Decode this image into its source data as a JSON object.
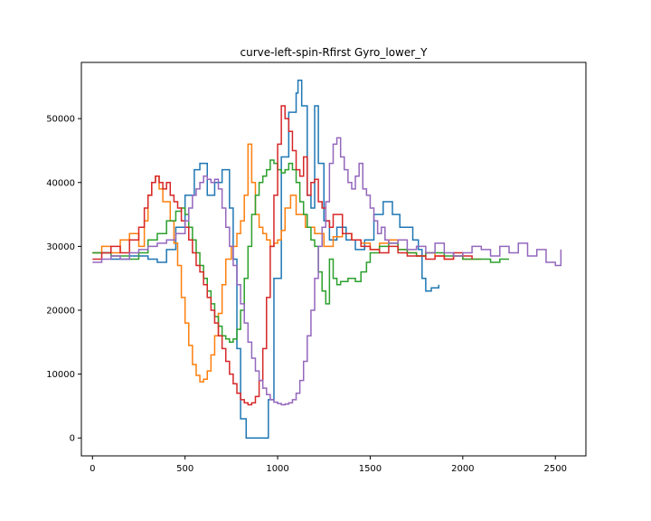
{
  "chart_data": {
    "type": "line",
    "title": "curve-left-spin-Rfirst Gyro_lower_Y",
    "xlabel": "",
    "ylabel": "",
    "xlim": [
      -60,
      2665
    ],
    "ylim": [
      -2800,
      58800
    ],
    "xticks": [
      0,
      500,
      1000,
      1500,
      2000,
      2500
    ],
    "yticks": [
      0,
      10000,
      20000,
      30000,
      40000,
      50000
    ],
    "xtick_labels": [
      "0",
      "500",
      "1000",
      "1500",
      "2000",
      "2500"
    ],
    "ytick_labels": [
      "0",
      "10000",
      "20000",
      "30000",
      "40000",
      "50000"
    ],
    "grid": false,
    "legend": "none",
    "series": [
      {
        "color": "#1f77b4",
        "x": [
          0,
          100,
          200,
          300,
          350,
          400,
          450,
          500,
          550,
          580,
          620,
          660,
          700,
          740,
          760,
          780,
          800,
          830,
          880,
          920,
          950,
          980,
          1020,
          1060,
          1100,
          1110,
          1130,
          1160,
          1180,
          1200,
          1220,
          1250,
          1280,
          1320,
          1370,
          1420,
          1470,
          1520,
          1570,
          1620,
          1660,
          1700,
          1730,
          1760,
          1780,
          1800,
          1830,
          1870
        ],
        "y": [
          29000,
          28000,
          28500,
          28000,
          27500,
          29500,
          33000,
          38000,
          42000,
          43000,
          38000,
          40000,
          42000,
          36000,
          28000,
          14000,
          3000,
          0,
          0,
          0,
          6000,
          25000,
          44000,
          51000,
          54000,
          56000,
          52000,
          38000,
          36000,
          52000,
          43000,
          34000,
          31000,
          33000,
          31000,
          29500,
          31000,
          35000,
          37000,
          35000,
          33000,
          33000,
          31000,
          29500,
          25000,
          23000,
          23500,
          24000
        ]
      },
      {
        "color": "#ff7f0e",
        "x": [
          0,
          50,
          100,
          150,
          200,
          250,
          280,
          300,
          320,
          340,
          360,
          380,
          400,
          420,
          440,
          460,
          480,
          500,
          520,
          540,
          560,
          580,
          600,
          620,
          640,
          660,
          680,
          700,
          720,
          750,
          780,
          800,
          820,
          840,
          860,
          880,
          900,
          920,
          940,
          960,
          980,
          1000,
          1020,
          1040,
          1070,
          1100,
          1150,
          1200,
          1250,
          1300,
          1350,
          1400,
          1450,
          1500,
          1550,
          1600,
          1650,
          1700,
          1750,
          1800,
          1850,
          1900,
          1950,
          2000,
          2050,
          2100
        ],
        "y": [
          29000,
          30000,
          29000,
          31000,
          32000,
          30000,
          34000,
          38000,
          40000,
          41000,
          39000,
          37000,
          37000,
          34000,
          30500,
          27000,
          22000,
          18000,
          14500,
          11500,
          9800,
          8800,
          9200,
          10500,
          13000,
          16000,
          19500,
          24000,
          28000,
          30000,
          32000,
          34000,
          38000,
          46000,
          40000,
          35000,
          33000,
          32000,
          31000,
          30000,
          30500,
          31000,
          32500,
          36000,
          38000,
          35000,
          33000,
          32000,
          30000,
          31500,
          32000,
          31000,
          30500,
          29500,
          30500,
          31000,
          29500,
          29000,
          28500,
          29000,
          28500,
          28000,
          28500,
          28000,
          28000,
          28000
        ]
      },
      {
        "color": "#2ca02c",
        "x": [
          0,
          50,
          100,
          150,
          200,
          250,
          300,
          350,
          400,
          450,
          480,
          500,
          520,
          540,
          560,
          580,
          600,
          620,
          640,
          660,
          680,
          700,
          720,
          740,
          760,
          780,
          800,
          820,
          840,
          860,
          880,
          900,
          920,
          940,
          960,
          980,
          1000,
          1020,
          1040,
          1060,
          1080,
          1100,
          1120,
          1140,
          1160,
          1180,
          1200,
          1220,
          1240,
          1260,
          1280,
          1300,
          1320,
          1340,
          1380,
          1420,
          1450,
          1480,
          1500,
          1550,
          1600,
          1650,
          1700,
          1750,
          1800,
          1850,
          1900,
          1950,
          2000,
          2050,
          2100,
          2150,
          2200,
          2250
        ],
        "y": [
          29000,
          29000,
          28500,
          28500,
          28000,
          29000,
          31000,
          32000,
          34000,
          35500,
          36000,
          35000,
          33000,
          31000,
          29000,
          27000,
          25000,
          23000,
          21000,
          19000,
          17500,
          16000,
          15500,
          15000,
          15500,
          17000,
          20000,
          25000,
          30000,
          35000,
          38000,
          40000,
          41000,
          42000,
          43500,
          43000,
          42000,
          41500,
          42000,
          43000,
          42000,
          40000,
          37000,
          35000,
          33000,
          31000,
          30000,
          26000,
          23000,
          21000,
          28000,
          25000,
          24000,
          24500,
          25000,
          24500,
          26000,
          27500,
          29000,
          30000,
          30500,
          29500,
          29000,
          28500,
          29000,
          29000,
          28500,
          28500,
          28000,
          28000,
          28000,
          27500,
          28000,
          28000
        ]
      },
      {
        "color": "#d62728",
        "x": [
          0,
          50,
          100,
          150,
          200,
          250,
          280,
          300,
          320,
          340,
          360,
          380,
          400,
          420,
          440,
          460,
          480,
          500,
          520,
          540,
          560,
          580,
          600,
          620,
          640,
          660,
          680,
          700,
          720,
          740,
          760,
          780,
          800,
          820,
          840,
          860,
          880,
          900,
          920,
          940,
          960,
          980,
          1000,
          1020,
          1040,
          1060,
          1080,
          1100,
          1120,
          1140,
          1160,
          1180,
          1200,
          1220,
          1240,
          1260,
          1280,
          1300,
          1350,
          1400,
          1450,
          1500,
          1550,
          1600,
          1650,
          1700,
          1750,
          1800,
          1850,
          1900,
          1950,
          2000,
          2050
        ],
        "y": [
          28000,
          29000,
          30000,
          29000,
          31000,
          33000,
          36000,
          38000,
          40000,
          41000,
          40000,
          39000,
          40000,
          38000,
          37000,
          36000,
          34000,
          33000,
          31000,
          29000,
          27000,
          26000,
          24000,
          22000,
          20000,
          18000,
          16000,
          14000,
          12000,
          10000,
          8500,
          7000,
          6000,
          5500,
          5200,
          5500,
          6500,
          9000,
          14000,
          22000,
          30000,
          38000,
          46000,
          52000,
          50000,
          48000,
          45000,
          42000,
          41000,
          44000,
          38000,
          40000,
          40500,
          37000,
          36000,
          34000,
          33000,
          35000,
          32000,
          31000,
          30000,
          29500,
          29000,
          30000,
          29000,
          28500,
          28500,
          28000,
          28500,
          28000,
          29000,
          28500,
          28000
        ]
      },
      {
        "color": "#9467bd",
        "x": [
          0,
          50,
          100,
          150,
          200,
          250,
          300,
          350,
          400,
          450,
          500,
          520,
          540,
          560,
          580,
          600,
          620,
          640,
          660,
          680,
          700,
          720,
          740,
          760,
          780,
          800,
          820,
          840,
          860,
          880,
          900,
          920,
          940,
          960,
          980,
          1000,
          1020,
          1040,
          1060,
          1080,
          1100,
          1120,
          1140,
          1160,
          1180,
          1200,
          1220,
          1240,
          1260,
          1280,
          1300,
          1320,
          1340,
          1360,
          1380,
          1400,
          1420,
          1440,
          1460,
          1480,
          1500,
          1520,
          1540,
          1560,
          1580,
          1600,
          1650,
          1700,
          1750,
          1800,
          1850,
          1900,
          1950,
          2000,
          2050,
          2100,
          2150,
          2200,
          2250,
          2300,
          2350,
          2400,
          2450,
          2500,
          2530
        ],
        "y": [
          27500,
          28000,
          28500,
          28000,
          29000,
          29500,
          30000,
          30500,
          31000,
          32000,
          34000,
          36000,
          38000,
          39000,
          40000,
          41000,
          40500,
          40000,
          40500,
          39000,
          36000,
          33000,
          30000,
          27000,
          24000,
          21000,
          18000,
          15000,
          12500,
          10500,
          9000,
          7800,
          6800,
          6000,
          5600,
          5400,
          5200,
          5300,
          5500,
          6000,
          7000,
          9000,
          12000,
          16000,
          20000,
          25000,
          30000,
          33000,
          37000,
          43000,
          46000,
          47000,
          44000,
          42000,
          40000,
          39000,
          41000,
          43000,
          39000,
          38000,
          36000,
          34000,
          32000,
          33000,
          31000,
          30500,
          31000,
          29500,
          30000,
          29000,
          30500,
          29000,
          28500,
          29000,
          30000,
          29500,
          28500,
          30000,
          29000,
          30500,
          28500,
          29500,
          27500,
          27000,
          29500
        ]
      }
    ]
  }
}
